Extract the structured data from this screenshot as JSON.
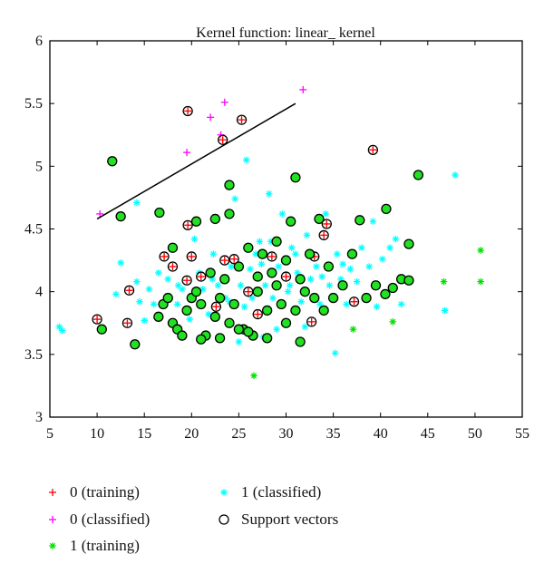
{
  "chart_data": {
    "type": "scatter",
    "title": "Kernel function: linear_ kernel",
    "xlabel": "",
    "ylabel": "",
    "xlim": [
      5,
      55
    ],
    "ylim": [
      3,
      6
    ],
    "xticks": [
      "5",
      "10",
      "15",
      "20",
      "25",
      "30",
      "35",
      "40",
      "45",
      "50",
      "55"
    ],
    "yticks": [
      "3",
      "3.5",
      "4",
      "4.5",
      "5",
      "5.5",
      "6"
    ],
    "grid": false,
    "legend_position": "bottom",
    "decision_boundary": {
      "label": "separating line",
      "points": [
        [
          10,
          4.58
        ],
        [
          31,
          5.5
        ]
      ]
    },
    "series": [
      {
        "name": "0 (training)",
        "marker": "plus",
        "color": "#ff0000",
        "points": [
          [
            19.6,
            5.44
          ],
          [
            25.3,
            5.37
          ],
          [
            23.3,
            5.21
          ],
          [
            39.2,
            5.13
          ],
          [
            10,
            3.78
          ],
          [
            13.2,
            3.75
          ],
          [
            13.4,
            4.01
          ],
          [
            32.7,
            3.76
          ],
          [
            37.2,
            3.92
          ],
          [
            34.3,
            4.54
          ],
          [
            34,
            4.45
          ],
          [
            19.6,
            4.53
          ],
          [
            19.5,
            4.09
          ],
          [
            17.1,
            4.28
          ],
          [
            18,
            4.2
          ],
          [
            21,
            4.12
          ],
          [
            24.5,
            4.26
          ],
          [
            27,
            3.82
          ],
          [
            22.6,
            3.88
          ],
          [
            28.5,
            4.28
          ],
          [
            30,
            4.12
          ],
          [
            33,
            4.28
          ],
          [
            26,
            4.0
          ],
          [
            23.5,
            4.25
          ],
          [
            20,
            4.28
          ]
        ]
      },
      {
        "name": "0 (classified)",
        "marker": "plus",
        "color": "#ff00ff",
        "points": [
          [
            10.3,
            4.62
          ],
          [
            19.5,
            5.11
          ],
          [
            22,
            5.39
          ],
          [
            23.5,
            5.51
          ],
          [
            23.1,
            5.25
          ],
          [
            31.8,
            5.61
          ]
        ]
      },
      {
        "name": "1 (training)",
        "marker": "star",
        "color": "#00e000",
        "points": [
          [
            26.6,
            3.33
          ],
          [
            37.1,
            3.7
          ],
          [
            41.3,
            3.76
          ],
          [
            46.7,
            4.08
          ],
          [
            50.6,
            4.08
          ],
          [
            50.6,
            4.33
          ],
          [
            17,
            3.9
          ],
          [
            17.5,
            3.95
          ],
          [
            18,
            3.75
          ],
          [
            18.5,
            3.7
          ],
          [
            19,
            3.65
          ],
          [
            19.5,
            3.85
          ],
          [
            20,
            3.95
          ],
          [
            20.5,
            4.0
          ],
          [
            21,
            3.9
          ],
          [
            21.5,
            3.65
          ],
          [
            22,
            4.15
          ],
          [
            22.5,
            3.8
          ],
          [
            23,
            3.95
          ],
          [
            23.5,
            4.1
          ],
          [
            24,
            3.75
          ],
          [
            24.5,
            3.9
          ],
          [
            25,
            4.2
          ],
          [
            25.5,
            3.7
          ],
          [
            26,
            4.35
          ],
          [
            26.5,
            3.65
          ],
          [
            27,
            4.0
          ],
          [
            27.5,
            4.3
          ],
          [
            28,
            3.85
          ],
          [
            28.5,
            4.15
          ],
          [
            29,
            4.05
          ],
          [
            29.5,
            3.9
          ],
          [
            30,
            4.25
          ],
          [
            30.5,
            4.56
          ],
          [
            31,
            3.85
          ],
          [
            31.5,
            4.1
          ],
          [
            32,
            4.0
          ],
          [
            32.5,
            4.3
          ],
          [
            33,
            3.95
          ],
          [
            33.5,
            4.58
          ],
          [
            34,
            3.85
          ],
          [
            34.5,
            4.2
          ],
          [
            35,
            3.95
          ],
          [
            36,
            4.05
          ],
          [
            37,
            4.3
          ],
          [
            37.8,
            4.57
          ],
          [
            38.5,
            3.95
          ],
          [
            39.5,
            4.05
          ],
          [
            40.5,
            3.98
          ],
          [
            41.3,
            4.03
          ],
          [
            42.2,
            4.1
          ],
          [
            43,
            4.38
          ],
          [
            43,
            4.09
          ],
          [
            16.5,
            3.8
          ],
          [
            18,
            4.35
          ],
          [
            20.5,
            4.56
          ],
          [
            21,
            3.62
          ],
          [
            23,
            3.63
          ],
          [
            24,
            4.62
          ],
          [
            25,
            3.7
          ],
          [
            26,
            3.68
          ],
          [
            27,
            4.12
          ],
          [
            28,
            3.63
          ],
          [
            29,
            4.4
          ],
          [
            30,
            3.75
          ],
          [
            31.5,
            3.6
          ],
          [
            24,
            4.85
          ],
          [
            16.6,
            4.63
          ],
          [
            12.5,
            4.6
          ],
          [
            11.6,
            5.04
          ],
          [
            31,
            4.91
          ],
          [
            44,
            4.93
          ],
          [
            40.6,
            4.66
          ],
          [
            10.5,
            3.7
          ],
          [
            14,
            3.58
          ],
          [
            22.5,
            4.58
          ]
        ]
      },
      {
        "name": "1 (classified)",
        "marker": "star",
        "color": "#00ffff",
        "points": [
          [
            47.9,
            4.93
          ],
          [
            6,
            3.72
          ],
          [
            6.3,
            3.69
          ],
          [
            46.8,
            3.85
          ],
          [
            25.8,
            5.05
          ],
          [
            14.2,
            4.71
          ],
          [
            35.2,
            3.51
          ],
          [
            27.6,
            3.64
          ],
          [
            12.5,
            4.23
          ],
          [
            12,
            3.98
          ],
          [
            14.5,
            3.92
          ],
          [
            14.2,
            4.08
          ],
          [
            15,
            3.77
          ],
          [
            15.5,
            4.02
          ],
          [
            16.5,
            4.15
          ],
          [
            17.5,
            4.1
          ],
          [
            18.5,
            3.9
          ],
          [
            19,
            4.02
          ],
          [
            19.8,
            3.78
          ],
          [
            20.3,
            4.42
          ],
          [
            21.2,
            4.02
          ],
          [
            21.8,
            3.82
          ],
          [
            22.3,
            4.3
          ],
          [
            22.8,
            4.05
          ],
          [
            23.6,
            3.95
          ],
          [
            24.2,
            4.2
          ],
          [
            24.6,
            4.74
          ],
          [
            25.2,
            4.05
          ],
          [
            25.6,
            3.88
          ],
          [
            26.2,
            4.18
          ],
          [
            26.8,
            4.3
          ],
          [
            27.2,
            4.4
          ],
          [
            27.8,
            4.05
          ],
          [
            28.2,
            4.78
          ],
          [
            28.6,
            3.95
          ],
          [
            29.2,
            4.2
          ],
          [
            29.6,
            4.62
          ],
          [
            30.2,
            4.0
          ],
          [
            30.6,
            4.35
          ],
          [
            31.2,
            4.15
          ],
          [
            31.6,
            3.92
          ],
          [
            32.2,
            4.45
          ],
          [
            32.6,
            4.1
          ],
          [
            33.2,
            4.2
          ],
          [
            33.6,
            3.9
          ],
          [
            34.2,
            4.62
          ],
          [
            34.6,
            4.05
          ],
          [
            35.4,
            4.3
          ],
          [
            35.8,
            4.1
          ],
          [
            36.4,
            3.9
          ],
          [
            36.8,
            4.18
          ],
          [
            37.5,
            4.08
          ],
          [
            38,
            4.35
          ],
          [
            38.8,
            4.2
          ],
          [
            39.2,
            4.56
          ],
          [
            39.6,
            3.88
          ],
          [
            40.2,
            4.26
          ],
          [
            41,
            4.35
          ],
          [
            41.6,
            4.42
          ],
          [
            42.2,
            3.9
          ],
          [
            32,
            3.72
          ],
          [
            29,
            3.7
          ],
          [
            25,
            3.6
          ],
          [
            22.2,
            4.1
          ],
          [
            27.4,
            4.22
          ],
          [
            30.4,
            4.05
          ],
          [
            33.8,
            4.12
          ],
          [
            36,
            4.22
          ],
          [
            28.4,
            4.4
          ],
          [
            31,
            4.3
          ],
          [
            26.4,
            3.95
          ],
          [
            24,
            3.92
          ],
          [
            20.8,
            4.15
          ],
          [
            18.6,
            4.05
          ],
          [
            16,
            3.9
          ]
        ]
      }
    ],
    "support_vectors": {
      "name": "Support vectors",
      "marker": "circle",
      "color": "#000000",
      "points": [
        [
          19.6,
          5.44
        ],
        [
          25.3,
          5.37
        ],
        [
          23.3,
          5.21
        ],
        [
          39.2,
          5.13
        ],
        [
          10,
          3.78
        ],
        [
          13.2,
          3.75
        ],
        [
          13.4,
          4.01
        ],
        [
          32.7,
          3.76
        ],
        [
          37.2,
          3.92
        ],
        [
          34.3,
          4.54
        ],
        [
          34,
          4.45
        ],
        [
          19.6,
          4.53
        ],
        [
          19.5,
          4.09
        ],
        [
          17.1,
          4.28
        ],
        [
          18,
          4.2
        ],
        [
          21,
          4.12
        ],
        [
          24.5,
          4.26
        ],
        [
          27,
          3.82
        ],
        [
          22.6,
          3.88
        ],
        [
          28.5,
          4.28
        ],
        [
          30,
          4.12
        ],
        [
          33,
          4.28
        ],
        [
          26,
          4.0
        ],
        [
          23.5,
          4.25
        ],
        [
          20,
          4.28
        ],
        [
          17,
          3.9
        ],
        [
          17.5,
          3.95
        ],
        [
          18,
          3.75
        ],
        [
          18.5,
          3.7
        ],
        [
          19,
          3.65
        ],
        [
          19.5,
          3.85
        ],
        [
          20,
          3.95
        ],
        [
          20.5,
          4.0
        ],
        [
          21,
          3.9
        ],
        [
          21.5,
          3.65
        ],
        [
          22,
          4.15
        ],
        [
          22.5,
          3.8
        ],
        [
          23,
          3.95
        ],
        [
          23.5,
          4.1
        ],
        [
          24,
          3.75
        ],
        [
          24.5,
          3.9
        ],
        [
          25,
          4.2
        ],
        [
          25.5,
          3.7
        ],
        [
          26,
          4.35
        ],
        [
          26.5,
          3.65
        ],
        [
          27,
          4.0
        ],
        [
          27.5,
          4.3
        ],
        [
          28,
          3.85
        ],
        [
          28.5,
          4.15
        ],
        [
          29,
          4.05
        ],
        [
          29.5,
          3.9
        ],
        [
          30,
          4.25
        ],
        [
          30.5,
          4.56
        ],
        [
          31,
          3.85
        ],
        [
          31.5,
          4.1
        ],
        [
          32,
          4.0
        ],
        [
          32.5,
          4.3
        ],
        [
          33,
          3.95
        ],
        [
          33.5,
          4.58
        ],
        [
          34,
          3.85
        ],
        [
          34.5,
          4.2
        ],
        [
          35,
          3.95
        ],
        [
          36,
          4.05
        ],
        [
          37,
          4.3
        ],
        [
          37.8,
          4.57
        ],
        [
          38.5,
          3.95
        ],
        [
          39.5,
          4.05
        ],
        [
          40.5,
          3.98
        ],
        [
          41.3,
          4.03
        ],
        [
          42.2,
          4.1
        ],
        [
          43,
          4.38
        ],
        [
          43,
          4.09
        ],
        [
          16.5,
          3.8
        ],
        [
          18,
          4.35
        ],
        [
          20.5,
          4.56
        ],
        [
          21,
          3.62
        ],
        [
          23,
          3.63
        ],
        [
          24,
          4.62
        ],
        [
          25,
          3.7
        ],
        [
          26,
          3.68
        ],
        [
          27,
          4.12
        ],
        [
          28,
          3.63
        ],
        [
          29,
          4.4
        ],
        [
          30,
          3.75
        ],
        [
          31.5,
          3.6
        ],
        [
          24,
          4.85
        ],
        [
          16.6,
          4.63
        ],
        [
          12.5,
          4.6
        ],
        [
          11.6,
          5.04
        ],
        [
          31,
          4.91
        ],
        [
          44,
          4.93
        ],
        [
          40.6,
          4.66
        ],
        [
          10.5,
          3.7
        ],
        [
          14,
          3.58
        ],
        [
          22.5,
          4.58
        ]
      ]
    },
    "legend": [
      {
        "label": "0 (training)",
        "marker": "plus",
        "color": "#ff0000"
      },
      {
        "label": "0 (classified)",
        "marker": "plus",
        "color": "#ff00ff"
      },
      {
        "label": "1 (training)",
        "marker": "star",
        "color": "#00e000"
      },
      {
        "label": "1 (classified)",
        "marker": "star",
        "color": "#00ffff"
      },
      {
        "label": "Support vectors",
        "marker": "circle",
        "color": "#000000"
      }
    ]
  }
}
